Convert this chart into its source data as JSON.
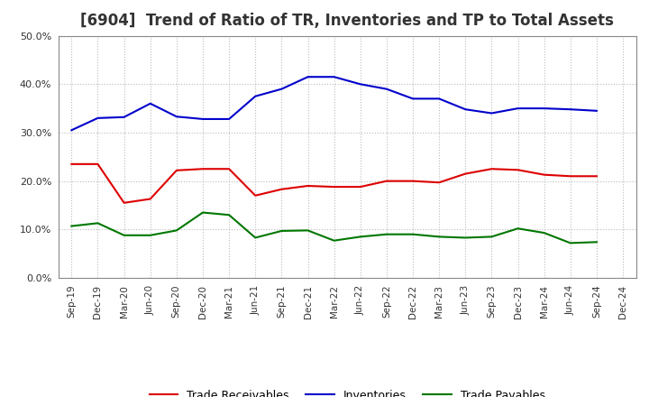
{
  "title": "[6904]  Trend of Ratio of TR, Inventories and TP to Total Assets",
  "x_labels": [
    "Sep-19",
    "Dec-19",
    "Mar-20",
    "Jun-20",
    "Sep-20",
    "Dec-20",
    "Mar-21",
    "Jun-21",
    "Sep-21",
    "Dec-21",
    "Mar-22",
    "Jun-22",
    "Sep-22",
    "Dec-22",
    "Mar-23",
    "Jun-23",
    "Sep-23",
    "Dec-23",
    "Mar-24",
    "Jun-24",
    "Sep-24",
    "Dec-24"
  ],
  "trade_receivables": [
    0.235,
    0.235,
    0.155,
    0.163,
    0.222,
    0.225,
    0.225,
    0.17,
    0.183,
    0.19,
    0.188,
    0.188,
    0.2,
    0.2,
    0.197,
    0.215,
    0.225,
    0.223,
    0.213,
    0.21,
    0.21,
    null
  ],
  "inventories": [
    0.305,
    0.33,
    0.332,
    0.36,
    0.333,
    0.328,
    0.328,
    0.375,
    0.39,
    0.415,
    0.415,
    0.4,
    0.39,
    0.37,
    0.37,
    0.348,
    0.34,
    0.35,
    0.35,
    0.348,
    0.345,
    null
  ],
  "trade_payables": [
    0.107,
    0.113,
    0.088,
    0.088,
    0.098,
    0.135,
    0.13,
    0.083,
    0.097,
    0.098,
    0.077,
    0.085,
    0.09,
    0.09,
    0.085,
    0.083,
    0.085,
    0.102,
    0.093,
    0.072,
    0.074,
    null
  ],
  "tr_color": "#dd0000",
  "inv_color": "#0000cc",
  "tp_color": "#007700",
  "ylim": [
    0.0,
    0.5
  ],
  "yticks": [
    0.0,
    0.1,
    0.2,
    0.3,
    0.4,
    0.5
  ],
  "bg_color": "#ffffff",
  "grid_color": "#bbbbbb",
  "title_fontsize": 12,
  "title_color": "#333333"
}
